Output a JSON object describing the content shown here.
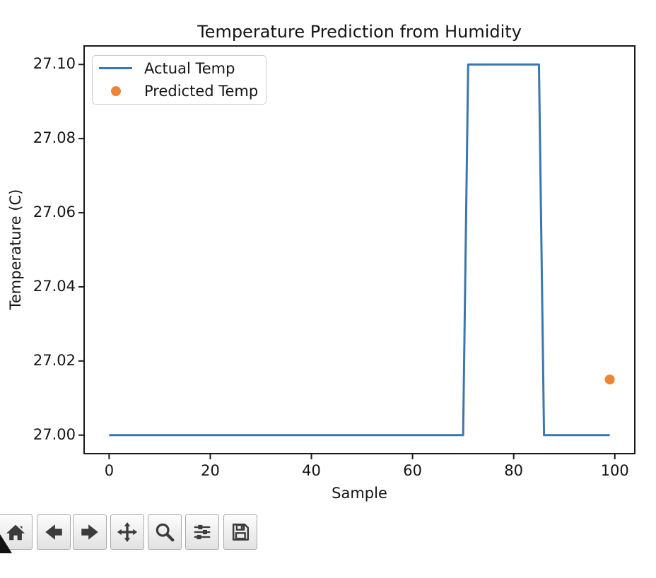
{
  "chart_data": {
    "type": "line",
    "title": "Temperature Prediction from Humidity",
    "xlabel": "Sample",
    "ylabel": "Temperature (C)",
    "xlim": [
      -4.95,
      103.95
    ],
    "ylim": [
      26.995,
      27.105
    ],
    "xticks": [
      0,
      20,
      40,
      60,
      80,
      100
    ],
    "yticks": [
      27.0,
      27.02,
      27.04,
      27.06,
      27.08,
      27.1
    ],
    "ytick_labels": [
      "27.00",
      "27.02",
      "27.04",
      "27.06",
      "27.08",
      "27.10"
    ],
    "grid": false,
    "legend_position": "upper left",
    "series": [
      {
        "name": "Actual Temp",
        "type": "line",
        "color": "#3a76af",
        "linewidth": 3,
        "segments": [
          {
            "x_start": 0,
            "x_end": 70,
            "y": 27.0
          },
          {
            "x_start": 71,
            "x_end": 85,
            "y": 27.1
          },
          {
            "x_start": 86,
            "x_end": 99,
            "y": 27.0
          }
        ]
      },
      {
        "name": "Predicted Temp",
        "type": "scatter",
        "color": "#ee8534",
        "marker": "circle",
        "marker_diameter_px": 14,
        "points": [
          {
            "x": 99,
            "y": 27.015
          }
        ]
      }
    ]
  },
  "toolbar": {
    "buttons": [
      {
        "icon": "home-icon",
        "action": "home"
      },
      {
        "icon": "back-icon",
        "action": "back"
      },
      {
        "icon": "forward-icon",
        "action": "forward"
      },
      {
        "icon": "pan-icon",
        "action": "pan"
      },
      {
        "icon": "zoom-icon",
        "action": "zoom-to-rect"
      },
      {
        "icon": "subplots-icon",
        "action": "configure-subplots"
      },
      {
        "icon": "save-icon",
        "action": "save-figure"
      }
    ]
  },
  "colors": {
    "spine": "#1a1a1a",
    "tick": "#1a1a1a",
    "text": "#141414",
    "legend_border": "#cccccc",
    "toolbar_border": "#a9a9a9",
    "icon": "#3b3b3b"
  }
}
